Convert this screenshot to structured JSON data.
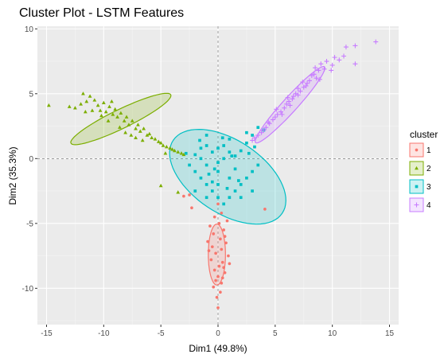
{
  "chart_data": {
    "type": "scatter",
    "title": "Cluster Plot - LSTM Features",
    "xlabel": "Dim1 (49.8%)",
    "ylabel": "Dim2 (35.3%)",
    "xlim": [
      -15.8,
      15.8
    ],
    "ylim": [
      -12.8,
      10.2
    ],
    "xticks": [
      -15,
      -10,
      -5,
      0,
      5,
      10,
      15
    ],
    "yticks": [
      -10,
      -5,
      0,
      5,
      10
    ],
    "xtick_labels": [
      "-15",
      "-10",
      "-5",
      "0",
      "5",
      "10",
      "15"
    ],
    "ytick_labels": [
      "-10",
      "-5",
      "0",
      "5",
      "10"
    ],
    "grid": true,
    "panel_background": "#ebebeb",
    "legend": {
      "title": "cluster",
      "position": "right"
    },
    "series": [
      {
        "name": "1",
        "color": "#F8766D",
        "marker": "circle",
        "points": [
          [
            -3,
            -2.9
          ],
          [
            -2.5,
            -2.8
          ],
          [
            -2.3,
            -3.8
          ],
          [
            0,
            -3.5
          ],
          [
            0.3,
            -4.2
          ],
          [
            -0.3,
            -4.5
          ],
          [
            0.1,
            -5.0
          ],
          [
            0.5,
            -5.5
          ],
          [
            -0.4,
            -5.8
          ],
          [
            0.2,
            -6.2
          ],
          [
            0.7,
            -6.5
          ],
          [
            -0.5,
            -6.8
          ],
          [
            0.3,
            -7.0
          ],
          [
            -0.2,
            -7.3
          ],
          [
            0.9,
            -7.5
          ],
          [
            -0.6,
            -7.8
          ],
          [
            0.4,
            -8.0
          ],
          [
            0.1,
            -8.3
          ],
          [
            -0.3,
            -8.6
          ],
          [
            0.6,
            -8.8
          ],
          [
            0.0,
            -9.1
          ],
          [
            -0.2,
            -9.4
          ],
          [
            0.3,
            -9.6
          ],
          [
            -0.4,
            -9.9
          ],
          [
            0.2,
            -10.3
          ],
          [
            -0.1,
            -10.7
          ],
          [
            0.0,
            -11.5
          ],
          [
            4.1,
            -3.9
          ],
          [
            0.8,
            -4.8
          ],
          [
            -0.7,
            -5.2
          ],
          [
            0.6,
            -6.0
          ],
          [
            -0.8,
            -7.1
          ],
          [
            0.5,
            -8.4
          ],
          [
            1.0,
            -8.1
          ],
          [
            -0.9,
            -6.4
          ],
          [
            0.4,
            -9.2
          ]
        ],
        "ellipse": {
          "cx": -0.1,
          "cy": -7.4,
          "rx": 0.75,
          "ry": 2.35,
          "angle_deg": 0
        }
      },
      {
        "name": "2",
        "color": "#7CAE00",
        "marker": "triangle",
        "points": [
          [
            -14.8,
            4.1
          ],
          [
            -13.0,
            4.0
          ],
          [
            -12.5,
            3.9
          ],
          [
            -11.8,
            5.0
          ],
          [
            -11.5,
            4.4
          ],
          [
            -11.2,
            4.8
          ],
          [
            -10.8,
            4.5
          ],
          [
            -10.5,
            4.1
          ],
          [
            -10.3,
            3.7
          ],
          [
            -10.0,
            4.3
          ],
          [
            -9.8,
            3.6
          ],
          [
            -9.5,
            4.0
          ],
          [
            -9.2,
            3.4
          ],
          [
            -9.0,
            3.8
          ],
          [
            -8.8,
            3.2
          ],
          [
            -8.5,
            3.5
          ],
          [
            -8.2,
            2.9
          ],
          [
            -8.0,
            3.2
          ],
          [
            -7.8,
            2.6
          ],
          [
            -7.5,
            2.9
          ],
          [
            -7.2,
            2.3
          ],
          [
            -7.0,
            2.6
          ],
          [
            -6.8,
            2.1
          ],
          [
            -6.5,
            2.3
          ],
          [
            -6.2,
            1.8
          ],
          [
            -6.0,
            1.9
          ],
          [
            -5.8,
            1.6
          ],
          [
            -5.5,
            1.5
          ],
          [
            -5.2,
            1.3
          ],
          [
            -5.0,
            1.2
          ],
          [
            -4.8,
            1.0
          ],
          [
            -4.5,
            0.9
          ],
          [
            -4.2,
            0.8
          ],
          [
            -4.0,
            0.7
          ],
          [
            -3.8,
            0.6
          ],
          [
            -3.5,
            0.5
          ],
          [
            -3.2,
            0.4
          ],
          [
            -3.0,
            0.3
          ],
          [
            -11.0,
            3.7
          ],
          [
            -10.2,
            3.3
          ],
          [
            -9.6,
            2.9
          ],
          [
            -8.6,
            2.4
          ],
          [
            -7.6,
            1.8
          ],
          [
            -5.0,
            -2.1
          ],
          [
            -3.5,
            -2.6
          ],
          [
            -12.0,
            4.2
          ],
          [
            -11.6,
            3.6
          ],
          [
            -9.3,
            4.4
          ],
          [
            -6.6,
            1.4
          ],
          [
            -7.2,
            1.6
          ],
          [
            -8.1,
            2.0
          ],
          [
            -4.6,
            0.4
          ]
        ],
        "ellipse": {
          "cx": -8.5,
          "cy": 3.05,
          "rx": 4.75,
          "ry": 0.75,
          "angle_deg": 23
        }
      },
      {
        "name": "3",
        "color": "#00BFC4",
        "marker": "square",
        "points": [
          [
            -2.0,
            0.3
          ],
          [
            -1.5,
            0.8
          ],
          [
            -1.0,
            1.0
          ],
          [
            -0.5,
            0.5
          ],
          [
            0.0,
            0.8
          ],
          [
            0.5,
            1.0
          ],
          [
            1.0,
            0.5
          ],
          [
            1.5,
            0.2
          ],
          [
            2.0,
            0.6
          ],
          [
            2.5,
            1.2
          ],
          [
            3.0,
            1.8
          ],
          [
            3.5,
            2.4
          ],
          [
            4.0,
            2.2
          ],
          [
            -2.5,
            -0.5
          ],
          [
            -2.0,
            -1.0
          ],
          [
            -1.5,
            -1.5
          ],
          [
            -1.0,
            -2.0
          ],
          [
            -0.5,
            -2.5
          ],
          [
            0.0,
            -3.0
          ],
          [
            0.5,
            -3.5
          ],
          [
            1.0,
            -3.0
          ],
          [
            1.5,
            -2.5
          ],
          [
            2.0,
            -2.0
          ],
          [
            2.5,
            -1.5
          ],
          [
            3.0,
            -1.0
          ],
          [
            3.5,
            -0.5
          ],
          [
            -1.0,
            -0.5
          ],
          [
            0.0,
            -1.0
          ],
          [
            1.0,
            -1.5
          ],
          [
            -0.5,
            -1.8
          ],
          [
            0.5,
            0.0
          ],
          [
            -1.5,
            0.0
          ],
          [
            1.5,
            -0.8
          ],
          [
            2.0,
            -3.0
          ],
          [
            3.0,
            -2.5
          ],
          [
            -2.0,
            -2.5
          ],
          [
            -1.0,
            -3.0
          ],
          [
            0.0,
            -2.0
          ],
          [
            1.0,
            1.5
          ],
          [
            2.5,
            2.0
          ],
          [
            -1.0,
            1.8
          ],
          [
            0.0,
            -0.3
          ],
          [
            0.8,
            -2.3
          ],
          [
            -0.3,
            -0.8
          ],
          [
            1.2,
            0.2
          ],
          [
            -0.8,
            -1.2
          ],
          [
            2.7,
            0.4
          ],
          [
            3.2,
            0.9
          ],
          [
            -2.8,
            0.4
          ],
          [
            1.8,
            -1.7
          ],
          [
            -1.6,
            1.4
          ],
          [
            0.4,
            1.6
          ]
        ],
        "ellipse": {
          "cx": 0.85,
          "cy": -1.4,
          "rx": 5.55,
          "ry": 2.9,
          "angle_deg": -28
        }
      },
      {
        "name": "4",
        "color": "#C77CFF",
        "marker": "plus",
        "points": [
          [
            13.8,
            9.0
          ],
          [
            12.0,
            8.7
          ],
          [
            12.0,
            7.3
          ],
          [
            11.2,
            8.6
          ],
          [
            10.6,
            7.6
          ],
          [
            10.2,
            7.8
          ],
          [
            10.0,
            7.2
          ],
          [
            9.5,
            7.5
          ],
          [
            9.0,
            7.3
          ],
          [
            8.8,
            6.8
          ],
          [
            8.5,
            7.0
          ],
          [
            8.2,
            6.4
          ],
          [
            8.0,
            6.0
          ],
          [
            7.8,
            5.8
          ],
          [
            7.5,
            5.5
          ],
          [
            7.2,
            5.2
          ],
          [
            7.0,
            5.4
          ],
          [
            6.8,
            5.0
          ],
          [
            6.5,
            4.6
          ],
          [
            6.2,
            4.4
          ],
          [
            6.0,
            4.2
          ],
          [
            5.8,
            3.9
          ],
          [
            5.5,
            3.6
          ],
          [
            5.2,
            3.4
          ],
          [
            5.0,
            3.2
          ],
          [
            4.8,
            3.0
          ],
          [
            4.5,
            2.7
          ],
          [
            4.2,
            2.4
          ],
          [
            4.0,
            2.2
          ],
          [
            3.8,
            2.0
          ],
          [
            3.5,
            1.8
          ],
          [
            3.2,
            1.6
          ],
          [
            3.0,
            1.4
          ],
          [
            4.4,
            2.8
          ],
          [
            5.6,
            3.4
          ],
          [
            6.6,
            4.8
          ],
          [
            7.4,
            5.9
          ],
          [
            8.4,
            6.5
          ],
          [
            9.3,
            6.9
          ],
          [
            7.0,
            4.9
          ],
          [
            6.1,
            4.7
          ],
          [
            5.1,
            3.8
          ],
          [
            8.9,
            6.1
          ],
          [
            9.9,
            6.8
          ],
          [
            11.0,
            7.9
          ],
          [
            8.6,
            6.2
          ],
          [
            7.7,
            5.6
          ],
          [
            6.3,
            4.1
          ]
        ],
        "ellipse": {
          "cx": 6.3,
          "cy": 4.15,
          "rx": 4.2,
          "ry": 0.6,
          "angle_deg": 44
        }
      }
    ]
  }
}
